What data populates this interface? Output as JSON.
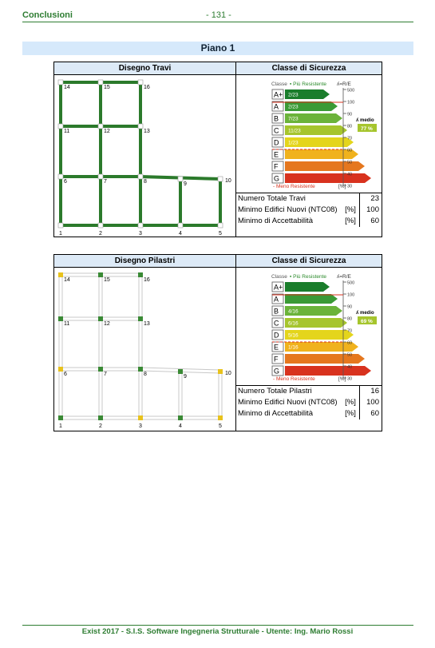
{
  "header": {
    "section": "Conclusioni",
    "page": "- 131 -"
  },
  "title": "Piano 1",
  "panels": [
    {
      "left_title": "Disegno Travi",
      "right_title": "Classe di Sicurezza",
      "rows": [
        {
          "label": "Numero Totale Travi",
          "unit": "",
          "value": "23"
        },
        {
          "label": "Minimo Edifici Nuovi (NTC08)",
          "unit": "[%]",
          "value": "100"
        },
        {
          "label": "Minimo di Accettabilità",
          "unit": "[%]",
          "value": "60"
        }
      ],
      "gauge": {
        "top_label": "▪ Più Resistente",
        "axis_label": "ʎ=R/E",
        "bottom_label": "- Meno Resistente",
        "unit": "[%]",
        "medio_label": "ʎ medio",
        "medio_value": "77 %",
        "classes": [
          {
            "name": "A+",
            "count": "2/23",
            "color": "#1a7d2b"
          },
          {
            "name": "A",
            "count": "2/23",
            "color": "#3a9a35"
          },
          {
            "name": "B",
            "count": "7/23",
            "color": "#6bb33a"
          },
          {
            "name": "C",
            "count": "11/23",
            "color": "#a6c52d"
          },
          {
            "name": "D",
            "count": "1/23",
            "color": "#e4d51c"
          },
          {
            "name": "E",
            "count": "",
            "color": "#f0b21d"
          },
          {
            "name": "F",
            "count": "",
            "color": "#e5771e"
          },
          {
            "name": "G",
            "count": "",
            "color": "#d8321e"
          }
        ],
        "ticks": [
          "500",
          "100",
          "90",
          "80",
          "70",
          "60",
          "50",
          "40",
          "30"
        ]
      },
      "nodes": [
        "14",
        "15",
        "16",
        "11",
        "12",
        "13",
        "6",
        "7",
        "8",
        "9",
        "10",
        "1",
        "2",
        "3",
        "4",
        "5"
      ]
    },
    {
      "left_title": "Disegno Pilastri",
      "right_title": "Classe di Sicurezza",
      "rows": [
        {
          "label": "Numero Totale Pilastri",
          "unit": "",
          "value": "16"
        },
        {
          "label": "Minimo Edifici Nuovi (NTC08)",
          "unit": "[%]",
          "value": "100"
        },
        {
          "label": "Minimo di Accettabilità",
          "unit": "[%]",
          "value": "60"
        }
      ],
      "gauge": {
        "top_label": "▪ Più Resistente",
        "axis_label": "ʎ=R/E",
        "bottom_label": "- Meno Resistente",
        "unit": "[%]",
        "medio_label": "ʎ medio",
        "medio_value": "69 %",
        "classes": [
          {
            "name": "A+",
            "count": "",
            "color": "#1a7d2b"
          },
          {
            "name": "A",
            "count": "",
            "color": "#3a9a35"
          },
          {
            "name": "B",
            "count": "4/16",
            "color": "#6bb33a"
          },
          {
            "name": "C",
            "count": "6/16",
            "color": "#a6c52d"
          },
          {
            "name": "D",
            "count": "5/16",
            "color": "#e4d51c"
          },
          {
            "name": "E",
            "count": "1/16",
            "color": "#f0b21d"
          },
          {
            "name": "F",
            "count": "",
            "color": "#e5771e"
          },
          {
            "name": "G",
            "count": "",
            "color": "#d8321e"
          }
        ],
        "ticks": [
          "500",
          "100",
          "90",
          "80",
          "70",
          "60",
          "50",
          "40",
          "30"
        ]
      },
      "nodes": [
        "14",
        "15",
        "16",
        "11",
        "12",
        "13",
        "6",
        "7",
        "8",
        "9",
        "10",
        "1",
        "2",
        "3",
        "4",
        "5"
      ]
    }
  ],
  "footer": "Exist 2017 - S.I.S. Software Ingegneria Strutturale - Utente: Ing. Mario Rossi"
}
